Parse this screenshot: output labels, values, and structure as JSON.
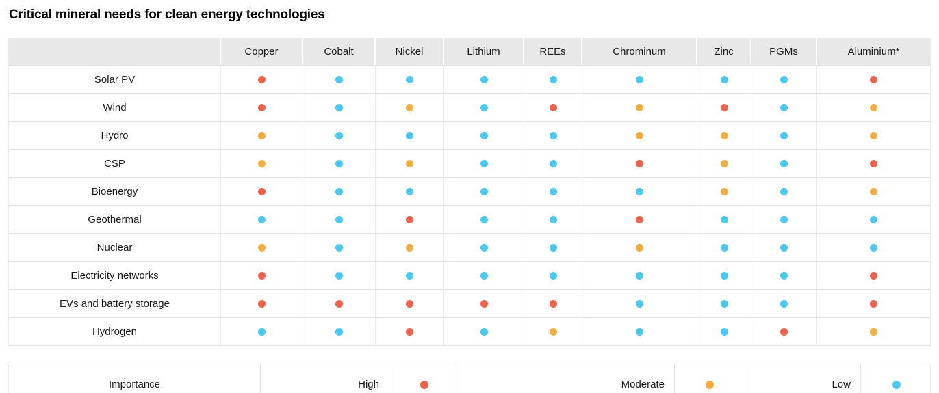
{
  "title": "Critical mineral needs for clean energy technologies",
  "colors": {
    "high": "#F4614B",
    "moderate": "#F5AE3D",
    "low": "#4AC8F1",
    "header_bg": "#E8E8E8"
  },
  "legend": {
    "title": "Importance",
    "items": [
      {
        "label": "High",
        "level": "high"
      },
      {
        "label": "Moderate",
        "level": "moderate"
      },
      {
        "label": "Low",
        "level": "low"
      }
    ]
  },
  "chart_data": {
    "type": "heatmap",
    "title": "Critical mineral needs for clean energy technologies",
    "columns": [
      "Copper",
      "Cobalt",
      "Nickel",
      "Lithium",
      "REEs",
      "Chrominum",
      "Zinc",
      "PGMs",
      "Aluminium*"
    ],
    "value_scale": [
      "high",
      "moderate",
      "low"
    ],
    "legend_position": "bottom",
    "rows": [
      {
        "label": "Solar PV",
        "values": [
          "high",
          "low",
          "low",
          "low",
          "low",
          "low",
          "low",
          "low",
          "high"
        ]
      },
      {
        "label": "Wind",
        "values": [
          "high",
          "low",
          "moderate",
          "low",
          "high",
          "moderate",
          "high",
          "low",
          "moderate"
        ]
      },
      {
        "label": "Hydro",
        "values": [
          "moderate",
          "low",
          "low",
          "low",
          "low",
          "moderate",
          "moderate",
          "low",
          "moderate"
        ]
      },
      {
        "label": "CSP",
        "values": [
          "moderate",
          "low",
          "moderate",
          "low",
          "low",
          "high",
          "moderate",
          "low",
          "high"
        ]
      },
      {
        "label": "Bioenergy",
        "values": [
          "high",
          "low",
          "low",
          "low",
          "low",
          "low",
          "moderate",
          "low",
          "moderate"
        ]
      },
      {
        "label": "Geothermal",
        "values": [
          "low",
          "low",
          "high",
          "low",
          "low",
          "high",
          "low",
          "low",
          "low"
        ]
      },
      {
        "label": "Nuclear",
        "values": [
          "moderate",
          "low",
          "moderate",
          "low",
          "low",
          "moderate",
          "low",
          "low",
          "low"
        ]
      },
      {
        "label": "Electricity networks",
        "values": [
          "high",
          "low",
          "low",
          "low",
          "low",
          "low",
          "low",
          "low",
          "high"
        ]
      },
      {
        "label": "EVs and battery storage",
        "values": [
          "high",
          "high",
          "high",
          "high",
          "high",
          "low",
          "low",
          "low",
          "high"
        ]
      },
      {
        "label": "Hydrogen",
        "values": [
          "low",
          "low",
          "high",
          "low",
          "moderate",
          "low",
          "low",
          "high",
          "moderate"
        ]
      }
    ]
  }
}
